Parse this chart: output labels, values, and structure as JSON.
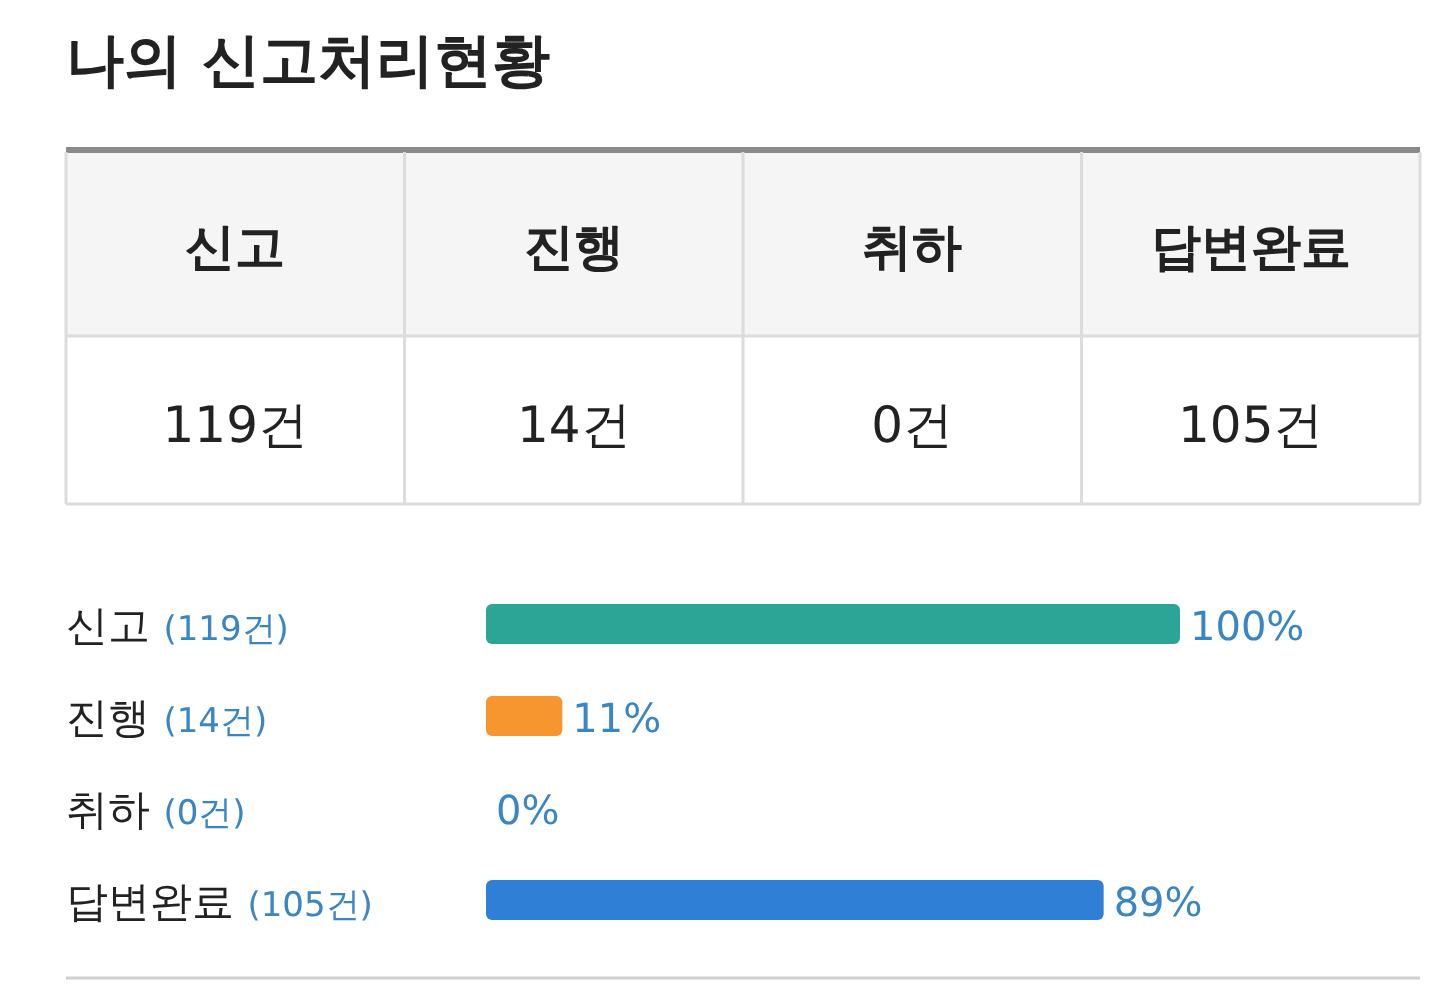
{
  "chart_data": [
    {
      "type": "other",
      "title": "나의 신고처리현황",
      "categories": [
        "신고",
        "진행",
        "취하",
        "답변완료"
      ],
      "value_labels": [
        "119건",
        "14건",
        "0건",
        "105건"
      ]
    },
    {
      "type": "bar",
      "orientation": "horizontal",
      "categories": [
        "신고 (119건)",
        "진행 (14건)",
        "취하 (0건)",
        "답변완료 (105건)"
      ],
      "values": [
        100,
        11,
        0,
        89
      ],
      "colors": [
        "#2ca597",
        "#f7952f",
        "#f7952f",
        "#2f7fd6"
      ],
      "value_labels": [
        "100%",
        "11%",
        "0%",
        "89%"
      ]
    }
  ]
}
